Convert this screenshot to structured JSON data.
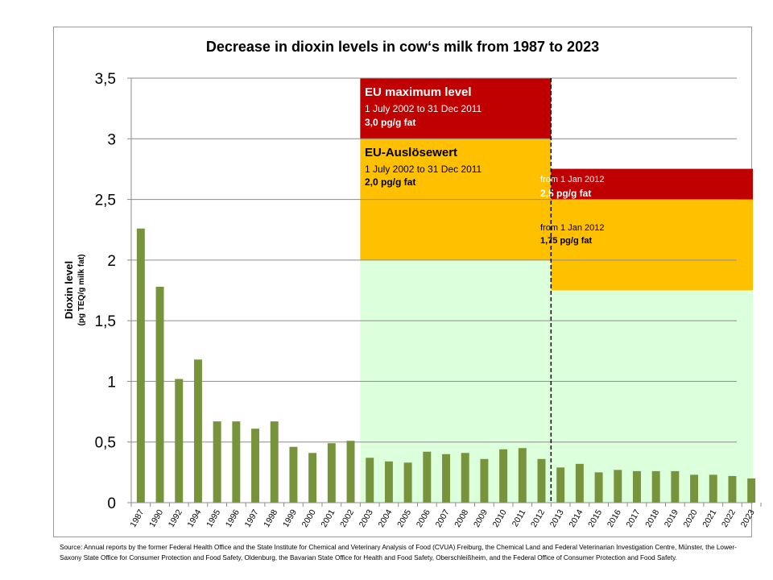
{
  "colors": {
    "bar": "#77933c",
    "red_zone": "#c00000",
    "orange_zone": "#ffc000",
    "green_zone": "#dcffdc",
    "grid": "#8c8c8c"
  },
  "chart_data": {
    "type": "bar",
    "title": "Decrease in dioxin levels in cow‘s milk from 1987 to 2023",
    "ylabel": "Dioxin level",
    "ylabel_unit": "(pg TEQ/g milk fat)",
    "ylim": [
      0,
      3.5
    ],
    "yticks": [
      "0",
      "0,5",
      "1",
      "1,5",
      "2",
      "2,5",
      "3",
      "3,5"
    ],
    "grid": true,
    "categories": [
      "1987",
      "1990",
      "1992",
      "1994",
      "1995",
      "1996",
      "1997",
      "1998",
      "1999",
      "2000",
      "2001",
      "2002",
      "2003",
      "2004",
      "2005",
      "2006",
      "2007",
      "2008",
      "2009",
      "2010",
      "2011",
      "2012",
      "2013",
      "2014",
      "2015",
      "2016",
      "2017",
      "2018",
      "2019",
      "2020",
      "2021",
      "2022",
      "2023"
    ],
    "values": [
      2.26,
      1.78,
      1.02,
      1.18,
      0.67,
      0.67,
      0.61,
      0.67,
      0.46,
      0.41,
      0.49,
      0.51,
      0.37,
      0.34,
      0.33,
      0.42,
      0.4,
      0.41,
      0.36,
      0.44,
      0.45,
      0.36,
      0.29,
      0.32,
      0.25,
      0.27,
      0.26,
      0.26,
      0.26,
      0.23,
      0.23,
      0.22,
      0.2
    ],
    "annotations": {
      "eu_max_2002": {
        "title": "EU maximum level",
        "period": "1 July 2002 to 31 Dec 2011",
        "value": "3,0 pg/g fat",
        "level": 3.0,
        "from_category": "2003",
        "to_category": "2012"
      },
      "eu_trigger_2002": {
        "title": "EU-Auslösewert",
        "period": "1 July 2002 to 31 Dec 2011",
        "value": "2,0 pg/g fat",
        "level": 2.0,
        "from_category": "2003",
        "to_category": "2012"
      },
      "eu_max_2012": {
        "period": "from 1 Jan 2012",
        "value": "2,5 pg/g fat",
        "level": 2.5,
        "from_category": "2013",
        "to_category": "2023"
      },
      "eu_trigger_2012": {
        "period": "from 1 Jan 2012",
        "value": "1,75 pg/g fat",
        "level": 1.75,
        "from_category": "2013",
        "to_category": "2023"
      },
      "divider_category": "2012"
    }
  },
  "source": "Source: Annual reports by the former Federal Health Office and the State Institute for Chemical and Veterinary Analysis of Food (CVUA) Freiburg, the Chemical Land and Federal Veterinarian Investigation Centre, Münster, the Lower-Saxony State Office for Consumer Protection and Food Safety, Oldenburg, the Bavarian State Office for Health and Food Safety, Oberschleißheim, and the Federal Office of Consumer Protection and Food Safety."
}
